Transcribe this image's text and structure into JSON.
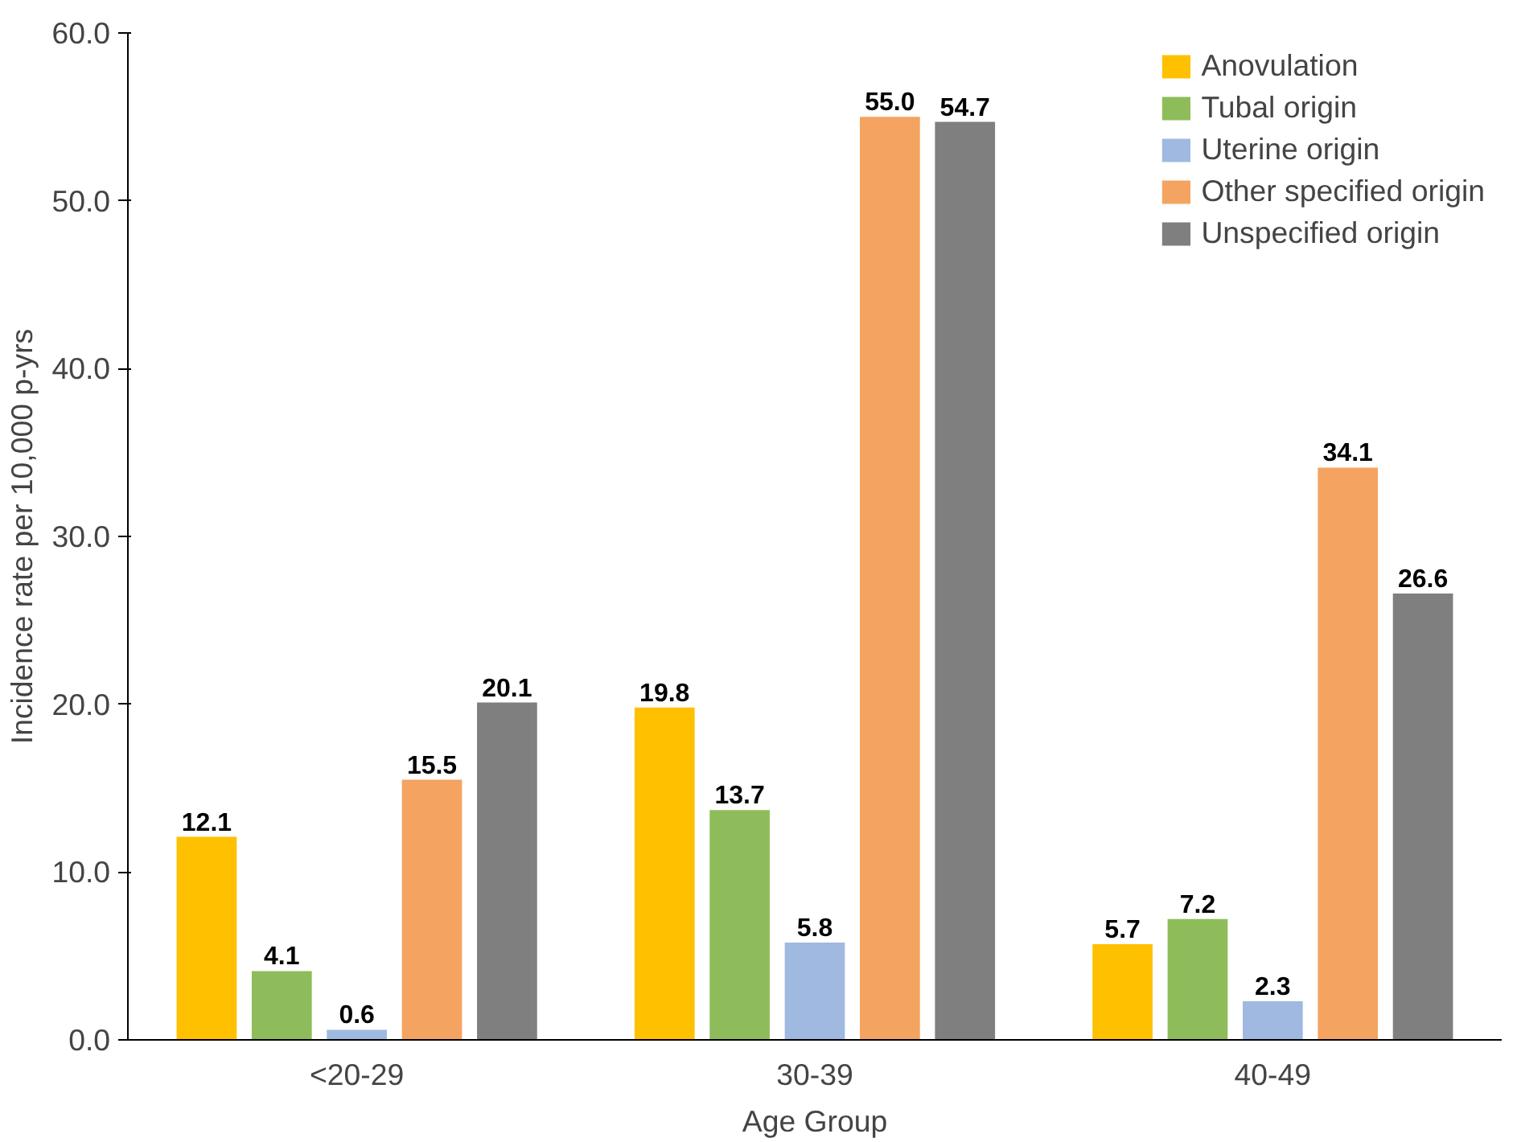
{
  "chart_data": {
    "type": "bar",
    "xlabel": "Age Group",
    "ylabel": "Incidence rate per 10,000 p-yrs",
    "categories": [
      "<20-29",
      "30-39",
      "40-49"
    ],
    "series": [
      {
        "name": "Anovulation",
        "color": "#ffc000",
        "values": [
          12.1,
          19.8,
          5.7
        ],
        "value_labels": [
          "12.1",
          "19.8",
          "5.7"
        ]
      },
      {
        "name": "Tubal origin",
        "color": "#8fbc5a",
        "values": [
          4.1,
          13.7,
          7.2
        ],
        "value_labels": [
          "4.1",
          "13.7",
          "7.2"
        ]
      },
      {
        "name": "Uterine origin",
        "color": "#9fb9e0",
        "values": [
          0.6,
          5.8,
          2.3
        ],
        "value_labels": [
          "0.6",
          "5.8",
          "2.3"
        ]
      },
      {
        "name": "Other specified origin",
        "color": "#f4a460",
        "values": [
          15.5,
          55.0,
          34.1
        ],
        "value_labels": [
          "15.5",
          "55.0",
          "34.1"
        ]
      },
      {
        "name": "Unspecified origin",
        "color": "#7f7f7f",
        "values": [
          20.1,
          54.7,
          26.6
        ],
        "value_labels": [
          "20.1",
          "54.7",
          "26.6"
        ]
      }
    ],
    "ylim": [
      0,
      60
    ],
    "yticks": [
      {
        "value": 0,
        "label": "0.0"
      },
      {
        "value": 10,
        "label": "10.0"
      },
      {
        "value": 20,
        "label": "20.0"
      },
      {
        "value": 30,
        "label": "30.0"
      },
      {
        "value": 40,
        "label": "40.0"
      },
      {
        "value": 50,
        "label": "50.0"
      },
      {
        "value": 60,
        "label": "60.0"
      }
    ],
    "grid": false,
    "legend": "top right"
  }
}
